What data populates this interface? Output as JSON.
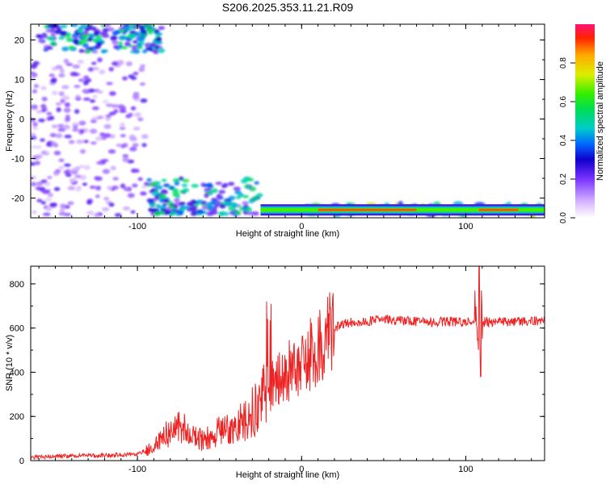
{
  "figure_title": "S206.2025.353.11.21.R09",
  "colors": {
    "snr_line": "#ee2222",
    "spec_low": "#cc99ff",
    "spec_mid": "#2200dd",
    "spec_high": "#ff0033"
  },
  "chart_data": [
    {
      "type": "heatmap",
      "title": "",
      "xlabel": "Height of straight line (km)",
      "ylabel": "Frequency (Hz)",
      "xlim": [
        -165,
        148
      ],
      "ylim": [
        -25,
        24
      ],
      "x_ticks": [
        -100,
        0,
        100
      ],
      "y_ticks": [
        -20,
        -10,
        0,
        10,
        20
      ],
      "x_tick_labels": [
        "-100",
        "0",
        "100"
      ],
      "y_tick_labels": [
        "-20",
        "-10",
        "0",
        "10",
        "20"
      ],
      "colorbar": {
        "label": "Normalized spectral amplitude",
        "range": [
          0,
          1
        ],
        "ticks": [
          0.0,
          0.2,
          0.4,
          0.6,
          0.8
        ],
        "tick_labels": [
          "0.0",
          "0.2",
          "0.4",
          "0.6",
          "0.8"
        ]
      },
      "features": [
        {
          "name": "continuous tone",
          "x_range": [
            -25,
            148
          ],
          "freq_hz": -23,
          "amplitude": 0.9
        },
        {
          "name": "low-frequency onset",
          "x_range": [
            -95,
            -25
          ],
          "freq_hz": [
            -24,
            -15
          ],
          "amplitude": 0.5
        },
        {
          "name": "high-frequency tone",
          "x_range": [
            -160,
            -85
          ],
          "freq_hz": [
            17,
            24
          ],
          "amplitude": 0.5
        },
        {
          "name": "diffuse background",
          "x_range": [
            -165,
            -95
          ],
          "freq_hz": [
            -25,
            15
          ],
          "amplitude": 0.12
        }
      ]
    },
    {
      "type": "line",
      "title": "",
      "xlabel": "Height of straight line (km)",
      "ylabel": "SNR (10 * v/v)",
      "xlim": [
        -165,
        148
      ],
      "ylim": [
        0,
        880
      ],
      "x_ticks": [
        -100,
        0,
        100
      ],
      "y_ticks": [
        0,
        200,
        400,
        600,
        800
      ],
      "x_tick_labels": [
        "-100",
        "0",
        "100"
      ],
      "y_tick_labels": [
        "0",
        "200",
        "400",
        "600",
        "800"
      ],
      "series": [
        {
          "name": "SNR",
          "x": [
            -165,
            -150,
            -130,
            -110,
            -100,
            -90,
            -85,
            -80,
            -75,
            -70,
            -65,
            -60,
            -55,
            -50,
            -45,
            -40,
            -35,
            -30,
            -25,
            -22,
            -20,
            -18,
            -15,
            -12,
            -10,
            -5,
            0,
            5,
            10,
            15,
            20,
            25,
            30,
            40,
            50,
            60,
            70,
            80,
            90,
            100,
            105,
            108,
            110,
            112,
            115,
            120,
            130,
            140,
            148
          ],
          "values": [
            15,
            20,
            22,
            25,
            30,
            60,
            100,
            130,
            150,
            140,
            110,
            90,
            110,
            130,
            150,
            160,
            180,
            220,
            240,
            320,
            300,
            340,
            360,
            380,
            400,
            420,
            450,
            480,
            520,
            560,
            600,
            620,
            625,
            630,
            640,
            635,
            630,
            628,
            630,
            625,
            630,
            650,
            620,
            630,
            625,
            628,
            630,
            632,
            635
          ]
        }
      ],
      "annotations": [
        {
          "name": "spike",
          "x": 108,
          "peak": 880,
          "trough": 380
        }
      ]
    }
  ]
}
